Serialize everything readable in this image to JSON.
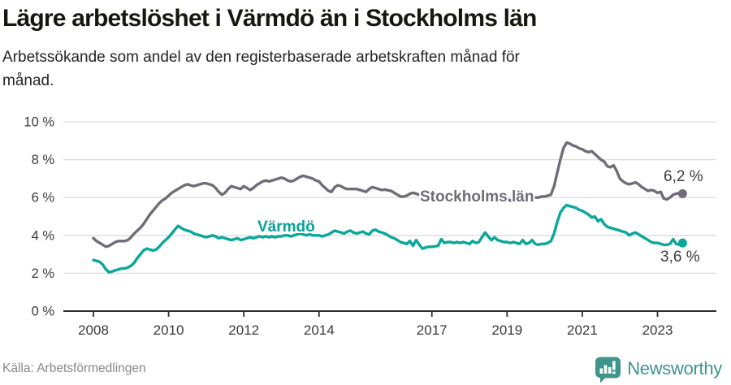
{
  "header": {
    "title": "Lägre arbetslöshet i Värmdö än i Stockholms län",
    "subtitle": "Arbetssökande som andel av den registerbaserade arbetskraften månad för månad."
  },
  "footer": {
    "source": "Källa: Arbetsförmedlingen",
    "brand": "Newsworthy",
    "brand_icon": "bar-chart-speech-bubble-icon",
    "brand_color": "#3f958b"
  },
  "colors": {
    "background": "#ffffff",
    "grid": "#dcdcdc",
    "axis": "#2e2e2e",
    "tick_text": "#3a3a3a",
    "stockholm_line": "#716c78",
    "varmdo_line": "#0aa79b"
  },
  "chart_data": {
    "type": "line",
    "title": "Lägre arbetslöshet i Värmdö än i Stockholms län",
    "subtitle": "Arbetssökande som andel av den registerbaserade arbetskraften månad för månad.",
    "xlabel": "",
    "ylabel": "",
    "x_unit": "month",
    "x_start": "2008-01",
    "x_end": "2023-09",
    "ylim": [
      0,
      10
    ],
    "grid": true,
    "legend_position": "inline-labels",
    "yticks": [
      {
        "value": 0,
        "label": "0 %"
      },
      {
        "value": 2,
        "label": "2 %"
      },
      {
        "value": 4,
        "label": "4 %"
      },
      {
        "value": 6,
        "label": "6 %"
      },
      {
        "value": 8,
        "label": "8 %"
      },
      {
        "value": 10,
        "label": "10 %"
      }
    ],
    "xticks": [
      {
        "year": 2008,
        "label": "2008"
      },
      {
        "year": 2010,
        "label": "2010"
      },
      {
        "year": 2012,
        "label": "2012"
      },
      {
        "year": 2014,
        "label": "2014"
      },
      {
        "year": 2017,
        "label": "2017"
      },
      {
        "year": 2019,
        "label": "2019"
      },
      {
        "year": 2021,
        "label": "2021"
      },
      {
        "year": 2023,
        "label": "2023"
      }
    ],
    "series": [
      {
        "name": "Stockholms län",
        "color": "#716c78",
        "end_label": "6,2 %",
        "end_value": 6.2,
        "values": [
          3.85,
          3.7,
          3.6,
          3.5,
          3.4,
          3.45,
          3.55,
          3.65,
          3.7,
          3.7,
          3.7,
          3.75,
          3.9,
          4.1,
          4.25,
          4.4,
          4.6,
          4.85,
          5.1,
          5.3,
          5.5,
          5.7,
          5.85,
          5.95,
          6.1,
          6.25,
          6.35,
          6.45,
          6.55,
          6.65,
          6.7,
          6.65,
          6.6,
          6.65,
          6.7,
          6.75,
          6.75,
          6.7,
          6.65,
          6.5,
          6.3,
          6.15,
          6.25,
          6.45,
          6.6,
          6.55,
          6.5,
          6.45,
          6.6,
          6.5,
          6.4,
          6.5,
          6.65,
          6.75,
          6.85,
          6.9,
          6.85,
          6.9,
          6.95,
          7.0,
          7.05,
          7.0,
          6.9,
          6.85,
          6.9,
          7.0,
          7.1,
          7.15,
          7.1,
          7.05,
          7.0,
          6.9,
          6.85,
          6.65,
          6.5,
          6.35,
          6.3,
          6.55,
          6.65,
          6.6,
          6.5,
          6.45,
          6.45,
          6.45,
          6.45,
          6.4,
          6.35,
          6.3,
          6.45,
          6.55,
          6.5,
          6.45,
          6.4,
          6.42,
          6.38,
          6.35,
          6.25,
          6.15,
          6.05,
          6.05,
          6.1,
          6.2,
          6.25,
          6.2,
          6.15,
          6.1,
          6.1,
          6.1,
          6.1,
          6.05,
          6.0,
          6.0,
          6.05,
          6.1,
          6.1,
          6.05,
          6.0,
          5.95,
          5.95,
          5.95,
          5.95,
          5.9,
          5.85,
          5.8,
          5.85,
          5.9,
          5.95,
          5.9,
          5.85,
          5.8,
          5.8,
          5.85,
          5.9,
          5.85,
          5.8,
          5.8,
          5.85,
          5.9,
          5.95,
          6.0,
          6.0,
          6.0,
          6.0,
          6.05,
          6.05,
          6.1,
          6.15,
          6.6,
          7.3,
          8.0,
          8.6,
          8.9,
          8.85,
          8.75,
          8.7,
          8.6,
          8.55,
          8.45,
          8.4,
          8.45,
          8.3,
          8.15,
          8.0,
          7.9,
          7.65,
          7.6,
          7.7,
          7.4,
          7.0,
          6.85,
          6.75,
          6.7,
          6.75,
          6.8,
          6.7,
          6.55,
          6.45,
          6.35,
          6.4,
          6.35,
          6.25,
          6.3,
          5.95,
          5.9,
          6.0,
          6.15,
          6.2,
          6.25,
          6.2
        ]
      },
      {
        "name": "Värmdö",
        "color": "#0aa79b",
        "end_label": "3,6 %",
        "end_value": 3.6,
        "values": [
          2.7,
          2.65,
          2.6,
          2.45,
          2.2,
          2.05,
          2.1,
          2.15,
          2.2,
          2.25,
          2.25,
          2.3,
          2.4,
          2.55,
          2.8,
          3.0,
          3.2,
          3.3,
          3.25,
          3.2,
          3.25,
          3.4,
          3.6,
          3.75,
          3.9,
          4.1,
          4.3,
          4.5,
          4.4,
          4.3,
          4.25,
          4.2,
          4.1,
          4.05,
          4.0,
          3.95,
          3.9,
          3.95,
          4.0,
          3.95,
          3.85,
          3.9,
          3.85,
          3.8,
          3.75,
          3.8,
          3.85,
          3.75,
          3.8,
          3.85,
          3.9,
          3.85,
          3.9,
          3.95,
          3.9,
          3.95,
          3.9,
          3.95,
          3.9,
          3.95,
          3.95,
          4.0,
          4.0,
          3.95,
          4.0,
          4.05,
          4.1,
          4.05,
          4.0,
          4.05,
          4.0,
          4.0,
          4.0,
          3.95,
          4.0,
          4.05,
          4.15,
          4.25,
          4.2,
          4.15,
          4.1,
          4.2,
          4.25,
          4.15,
          4.1,
          4.15,
          4.2,
          4.1,
          4.05,
          4.25,
          4.3,
          4.2,
          4.15,
          4.1,
          4.0,
          3.9,
          3.85,
          3.75,
          3.65,
          3.6,
          3.55,
          3.7,
          3.45,
          3.75,
          3.5,
          3.3,
          3.35,
          3.4,
          3.4,
          3.42,
          3.45,
          3.8,
          3.6,
          3.65,
          3.65,
          3.6,
          3.65,
          3.6,
          3.65,
          3.6,
          3.55,
          3.7,
          3.6,
          3.65,
          3.9,
          4.15,
          3.95,
          3.75,
          3.9,
          3.75,
          3.7,
          3.65,
          3.65,
          3.6,
          3.65,
          3.6,
          3.55,
          3.75,
          3.55,
          3.6,
          3.75,
          3.55,
          3.5,
          3.55,
          3.55,
          3.6,
          3.7,
          4.1,
          4.7,
          5.2,
          5.45,
          5.6,
          5.55,
          5.5,
          5.45,
          5.35,
          5.3,
          5.2,
          5.1,
          4.95,
          5.0,
          4.75,
          4.85,
          4.6,
          4.45,
          4.4,
          4.35,
          4.3,
          4.25,
          4.2,
          4.15,
          4.0,
          4.1,
          4.15,
          4.05,
          3.95,
          3.85,
          3.75,
          3.65,
          3.6,
          3.6,
          3.55,
          3.5,
          3.5,
          3.55,
          3.8,
          3.55,
          3.5,
          3.6
        ]
      }
    ]
  }
}
